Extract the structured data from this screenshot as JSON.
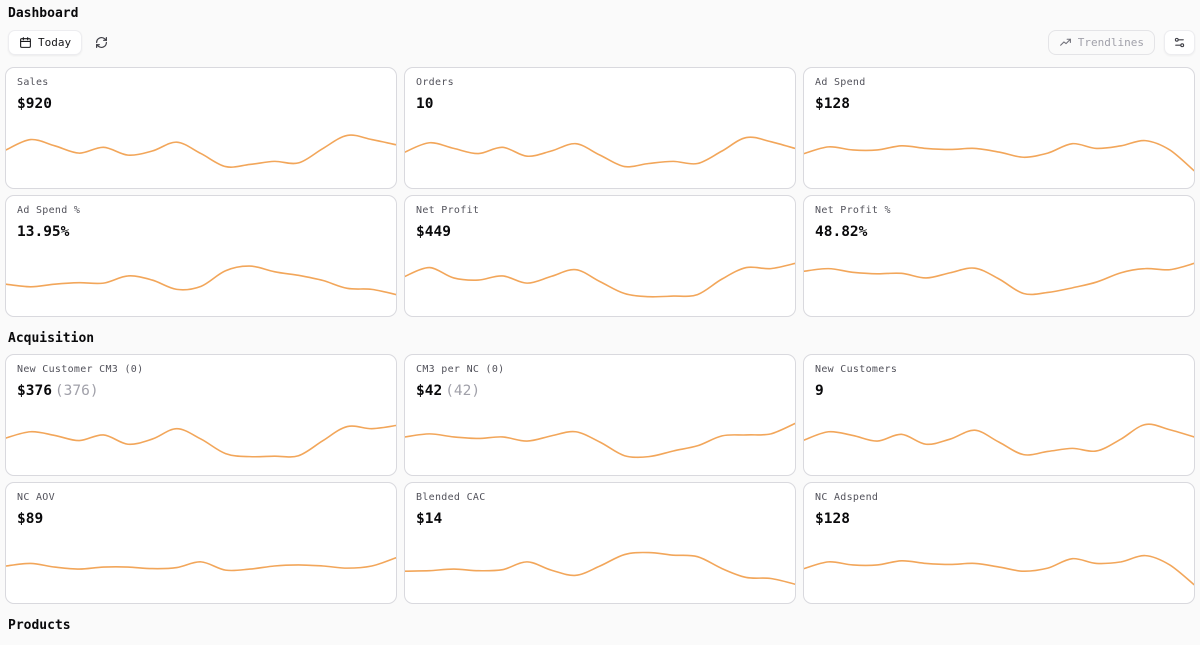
{
  "page": {
    "title": "Dashboard"
  },
  "toolbar": {
    "today_label": "Today",
    "trendlines_label": "Trendlines",
    "icons": {
      "calendar": "calendar-icon",
      "refresh": "refresh-icon",
      "trendline": "trendline-icon",
      "sliders": "sliders-icon"
    }
  },
  "colors": {
    "sparkline": "#f2a65a",
    "card_border": "#d9d9de",
    "label_gray": "#52525b",
    "secondary_gray": "#a1a1aa"
  },
  "sections": [
    {
      "heading": "",
      "cards": [
        {
          "label": "Sales",
          "value": "$920",
          "secondary": "",
          "spark": [
            52,
            72,
            60,
            46,
            57,
            42,
            50,
            67,
            45,
            20,
            24,
            30,
            27,
            55,
            80,
            72,
            62
          ]
        },
        {
          "label": "Orders",
          "value": "10",
          "secondary": "",
          "spark": [
            48,
            66,
            55,
            45,
            57,
            40,
            50,
            64,
            42,
            20,
            26,
            30,
            26,
            50,
            76,
            68,
            55
          ]
        },
        {
          "label": "Ad Spend",
          "value": "$128",
          "secondary": "",
          "spark": [
            45,
            58,
            52,
            52,
            60,
            55,
            53,
            55,
            48,
            38,
            46,
            64,
            55,
            60,
            70,
            52,
            12
          ]
        },
        {
          "label": "Ad Spend %",
          "value": "13.95%",
          "secondary": "",
          "spark": [
            40,
            35,
            40,
            43,
            42,
            56,
            48,
            30,
            36,
            66,
            75,
            64,
            57,
            47,
            32,
            30,
            20
          ]
        },
        {
          "label": "Net Profit",
          "value": "$449",
          "secondary": "",
          "spark": [
            55,
            72,
            52,
            48,
            56,
            42,
            55,
            68,
            45,
            22,
            16,
            17,
            20,
            50,
            72,
            70,
            80
          ]
        },
        {
          "label": "Net Profit %",
          "value": "48.82%",
          "secondary": "",
          "spark": [
            65,
            70,
            63,
            60,
            61,
            52,
            62,
            71,
            50,
            22,
            24,
            33,
            44,
            62,
            70,
            68,
            80
          ]
        }
      ]
    },
    {
      "heading": "Acquisition",
      "cards": [
        {
          "label": "New Customer CM3 (0)",
          "value": "$376",
          "secondary": "(376)",
          "spark": [
            50,
            62,
            55,
            45,
            56,
            38,
            48,
            68,
            48,
            20,
            14,
            15,
            16,
            45,
            72,
            68,
            74
          ]
        },
        {
          "label": "CM3 per NC (0)",
          "value": "$42",
          "secondary": "(42)",
          "spark": [
            52,
            58,
            52,
            49,
            52,
            44,
            54,
            62,
            42,
            16,
            14,
            25,
            35,
            54,
            56,
            58,
            78
          ]
        },
        {
          "label": "New Customers",
          "value": "9",
          "secondary": "",
          "spark": [
            46,
            62,
            55,
            44,
            57,
            38,
            48,
            65,
            42,
            18,
            24,
            30,
            25,
            48,
            76,
            66,
            52
          ]
        },
        {
          "label": "NC AOV",
          "value": "$89",
          "secondary": "",
          "spark": [
            50,
            55,
            48,
            44,
            48,
            48,
            45,
            47,
            58,
            42,
            44,
            50,
            52,
            50,
            46,
            50,
            66
          ]
        },
        {
          "label": "Blended CAC",
          "value": "$14",
          "secondary": "",
          "spark": [
            40,
            41,
            44,
            41,
            43,
            58,
            42,
            32,
            50,
            72,
            76,
            71,
            68,
            45,
            28,
            26,
            15
          ]
        },
        {
          "label": "NC Adspend",
          "value": "$128",
          "secondary": "",
          "spark": [
            45,
            58,
            52,
            52,
            60,
            55,
            53,
            55,
            48,
            40,
            46,
            64,
            55,
            58,
            70,
            52,
            14
          ]
        }
      ]
    },
    {
      "heading": "Products",
      "cards": []
    }
  ]
}
